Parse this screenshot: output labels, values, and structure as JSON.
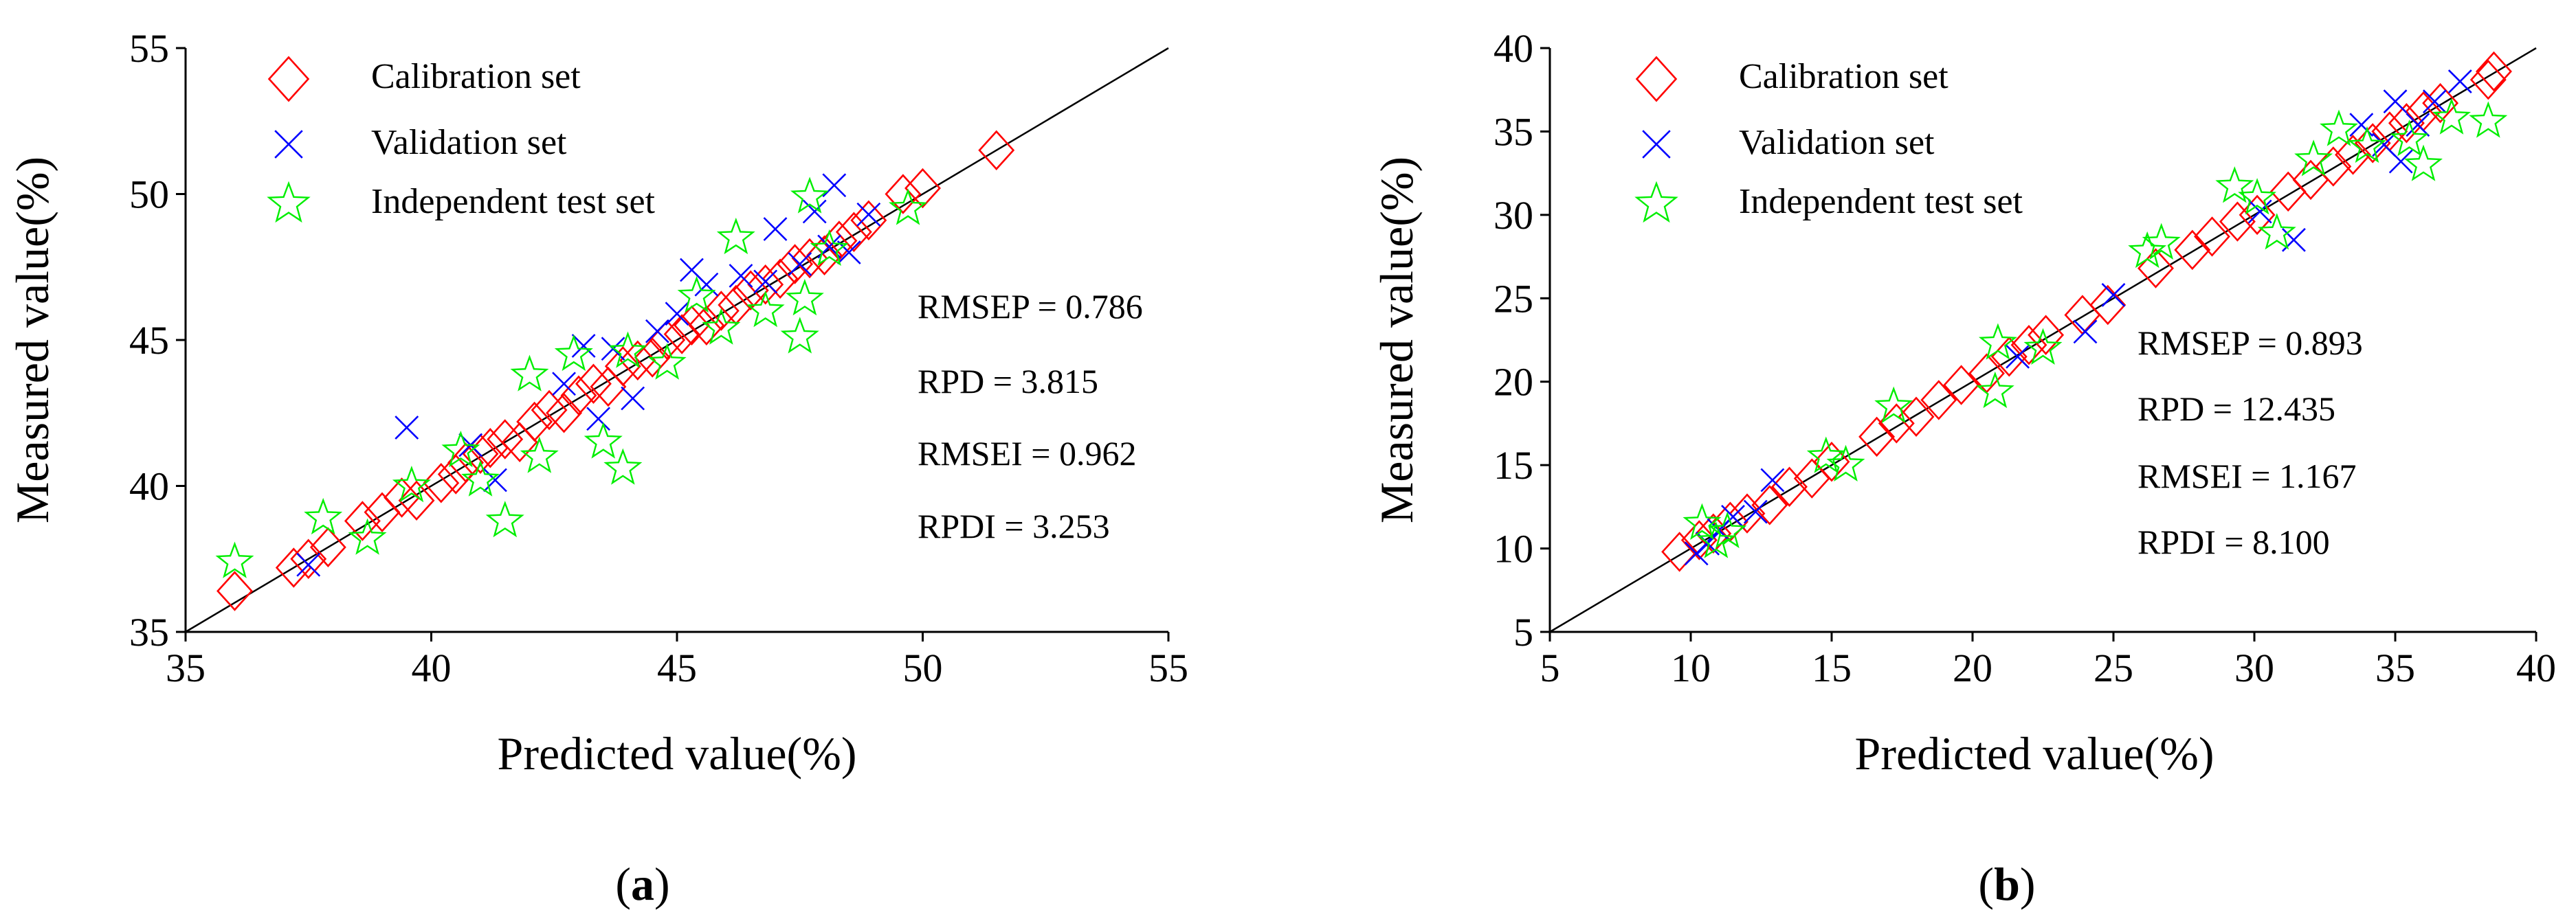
{
  "figure": {
    "panels": [
      {
        "label_open": "(",
        "label_letter": "a",
        "label_close": ")"
      },
      {
        "label_open": "(",
        "label_letter": "b",
        "label_close": ")"
      }
    ]
  },
  "chart_data": [
    {
      "type": "scatter",
      "panel": "a",
      "xlabel": "Predicted value(%)",
      "ylabel": "Measured value(%)",
      "xlim": [
        35,
        55
      ],
      "ylim": [
        35,
        55
      ],
      "xticks": [
        35,
        40,
        45,
        50,
        55
      ],
      "yticks": [
        35,
        40,
        45,
        50,
        55
      ],
      "legend_placement": "top-left",
      "reference_line": {
        "from": [
          35,
          35
        ],
        "to": [
          55,
          55
        ],
        "label": "y = x"
      },
      "colors": {
        "Calibration set": "#ff0000",
        "Validation set": "#0000ff",
        "Independent test set": "#00ee00"
      },
      "stats": [
        "RMSEP = 0.786",
        "RPD = 3.815",
        "RMSEI = 0.962",
        "RPDI = 3.253"
      ],
      "series": [
        {
          "name": "Calibration set",
          "marker": "diamond",
          "points": [
            [
              36.0,
              36.4
            ],
            [
              37.2,
              37.2
            ],
            [
              37.5,
              37.5
            ],
            [
              37.9,
              37.9
            ],
            [
              38.6,
              38.8
            ],
            [
              39.0,
              39.1
            ],
            [
              39.4,
              39.6
            ],
            [
              39.7,
              39.5
            ],
            [
              40.2,
              40.1
            ],
            [
              40.5,
              40.4
            ],
            [
              40.7,
              40.8
            ],
            [
              41.0,
              41.1
            ],
            [
              41.2,
              41.3
            ],
            [
              41.5,
              41.6
            ],
            [
              41.8,
              41.5
            ],
            [
              42.1,
              42.2
            ],
            [
              42.4,
              42.6
            ],
            [
              42.7,
              42.5
            ],
            [
              43.0,
              43.1
            ],
            [
              43.3,
              43.5
            ],
            [
              43.6,
              43.4
            ],
            [
              43.9,
              44.1
            ],
            [
              44.2,
              44.3
            ],
            [
              44.5,
              44.4
            ],
            [
              44.8,
              45.0
            ],
            [
              45.1,
              45.2
            ],
            [
              45.3,
              45.5
            ],
            [
              45.6,
              45.5
            ],
            [
              45.9,
              46.0
            ],
            [
              46.2,
              46.2
            ],
            [
              46.5,
              46.7
            ],
            [
              46.8,
              46.9
            ],
            [
              47.1,
              47.1
            ],
            [
              47.4,
              47.6
            ],
            [
              47.7,
              47.8
            ],
            [
              48.0,
              47.9
            ],
            [
              48.3,
              48.4
            ],
            [
              48.6,
              48.7
            ],
            [
              48.9,
              49.1
            ],
            [
              49.6,
              50.0
            ],
            [
              50.0,
              50.2
            ],
            [
              51.5,
              51.5
            ]
          ]
        },
        {
          "name": "Validation set",
          "marker": "cross",
          "points": [
            [
              37.5,
              37.3
            ],
            [
              39.5,
              42.0
            ],
            [
              40.8,
              41.4
            ],
            [
              41.3,
              40.2
            ],
            [
              42.7,
              43.5
            ],
            [
              43.1,
              44.8
            ],
            [
              43.4,
              42.3
            ],
            [
              43.7,
              44.7
            ],
            [
              44.1,
              43.0
            ],
            [
              44.6,
              45.3
            ],
            [
              45.0,
              45.9
            ],
            [
              45.3,
              47.4
            ],
            [
              45.6,
              46.9
            ],
            [
              46.3,
              47.2
            ],
            [
              46.8,
              47.0
            ],
            [
              47.0,
              48.8
            ],
            [
              47.5,
              47.6
            ],
            [
              47.8,
              49.4
            ],
            [
              48.1,
              48.2
            ],
            [
              48.2,
              50.3
            ],
            [
              48.5,
              48.0
            ],
            [
              48.9,
              49.3
            ]
          ]
        },
        {
          "name": "Independent test set",
          "marker": "star",
          "points": [
            [
              36.0,
              37.4
            ],
            [
              37.8,
              38.9
            ],
            [
              38.7,
              38.2
            ],
            [
              39.6,
              40.0
            ],
            [
              40.6,
              41.2
            ],
            [
              41.0,
              40.2
            ],
            [
              41.5,
              38.8
            ],
            [
              42.0,
              43.8
            ],
            [
              42.2,
              41.0
            ],
            [
              42.9,
              44.5
            ],
            [
              43.5,
              41.5
            ],
            [
              43.9,
              40.6
            ],
            [
              44.0,
              44.6
            ],
            [
              44.8,
              44.2
            ],
            [
              45.4,
              46.5
            ],
            [
              45.9,
              45.4
            ],
            [
              46.2,
              48.5
            ],
            [
              46.8,
              46.0
            ],
            [
              47.5,
              45.1
            ],
            [
              47.6,
              46.4
            ],
            [
              47.7,
              49.9
            ],
            [
              48.1,
              48.1
            ],
            [
              49.7,
              49.5
            ]
          ]
        }
      ]
    },
    {
      "type": "scatter",
      "panel": "b",
      "xlabel": "Predicted value(%)",
      "ylabel": "Measured value(%)",
      "xlim": [
        5,
        40
      ],
      "ylim": [
        5,
        40
      ],
      "xticks": [
        5,
        10,
        15,
        20,
        25,
        30,
        35,
        40
      ],
      "yticks": [
        5,
        10,
        15,
        20,
        25,
        30,
        35,
        40
      ],
      "legend_placement": "top-left",
      "reference_line": {
        "from": [
          5,
          5
        ],
        "to": [
          40,
          40
        ],
        "label": "y = x"
      },
      "colors": {
        "Calibration set": "#ff0000",
        "Validation set": "#0000ff",
        "Independent test set": "#00ee00"
      },
      "stats": [
        "RMSEP = 0.893",
        "RPD = 12.435",
        "RMSEI = 1.167",
        "RPDI = 8.100"
      ],
      "series": [
        {
          "name": "Calibration set",
          "marker": "diamond",
          "points": [
            [
              9.6,
              9.8
            ],
            [
              10.3,
              10.5
            ],
            [
              10.8,
              10.9
            ],
            [
              11.4,
              11.6
            ],
            [
              12.0,
              12.1
            ],
            [
              12.8,
              12.6
            ],
            [
              13.5,
              13.7
            ],
            [
              14.3,
              14.2
            ],
            [
              15.0,
              15.2
            ],
            [
              16.6,
              16.7
            ],
            [
              17.3,
              17.5
            ],
            [
              18.0,
              17.9
            ],
            [
              18.8,
              18.9
            ],
            [
              19.6,
              19.8
            ],
            [
              20.5,
              20.5
            ],
            [
              21.3,
              21.5
            ],
            [
              22.0,
              22.2
            ],
            [
              22.6,
              22.8
            ],
            [
              23.9,
              24.0
            ],
            [
              24.8,
              24.6
            ],
            [
              26.5,
              26.8
            ],
            [
              27.8,
              27.9
            ],
            [
              28.5,
              28.7
            ],
            [
              29.4,
              29.6
            ],
            [
              30.1,
              30.0
            ],
            [
              31.2,
              31.4
            ],
            [
              32.0,
              32.1
            ],
            [
              32.8,
              32.9
            ],
            [
              33.5,
              33.6
            ],
            [
              34.2,
              34.3
            ],
            [
              34.8,
              35.0
            ],
            [
              35.4,
              35.5
            ],
            [
              36.0,
              36.2
            ],
            [
              36.6,
              36.7
            ],
            [
              38.3,
              38.1
            ],
            [
              38.5,
              38.6
            ]
          ]
        },
        {
          "name": "Validation set",
          "marker": "cross",
          "points": [
            [
              10.2,
              9.7
            ],
            [
              10.6,
              10.3
            ],
            [
              11.0,
              11.1
            ],
            [
              11.5,
              11.9
            ],
            [
              12.3,
              12.2
            ],
            [
              12.9,
              14.1
            ],
            [
              21.6,
              21.5
            ],
            [
              24.0,
              23.0
            ],
            [
              25.0,
              25.2
            ],
            [
              30.2,
              30.2
            ],
            [
              31.4,
              28.5
            ],
            [
              33.8,
              35.4
            ],
            [
              34.6,
              34.2
            ],
            [
              35.0,
              36.8
            ],
            [
              35.2,
              33.2
            ],
            [
              35.8,
              35.4
            ],
            [
              36.4,
              36.8
            ],
            [
              37.3,
              38.0
            ]
          ]
        },
        {
          "name": "Independent test set",
          "marker": "star",
          "points": [
            [
              10.4,
              11.5
            ],
            [
              10.9,
              10.4
            ],
            [
              11.3,
              11.0
            ],
            [
              14.8,
              15.5
            ],
            [
              15.5,
              15.0
            ],
            [
              17.2,
              18.5
            ],
            [
              20.8,
              19.4
            ],
            [
              20.9,
              22.3
            ],
            [
              22.5,
              22.0
            ],
            [
              26.2,
              27.8
            ],
            [
              26.7,
              28.3
            ],
            [
              29.3,
              31.7
            ],
            [
              30.1,
              31.0
            ],
            [
              30.8,
              28.9
            ],
            [
              32.1,
              33.3
            ],
            [
              33.0,
              35.1
            ],
            [
              34.0,
              34.1
            ],
            [
              35.5,
              34.5
            ],
            [
              36.0,
              33.0
            ],
            [
              37.0,
              35.8
            ],
            [
              38.3,
              35.6
            ]
          ]
        }
      ]
    }
  ]
}
